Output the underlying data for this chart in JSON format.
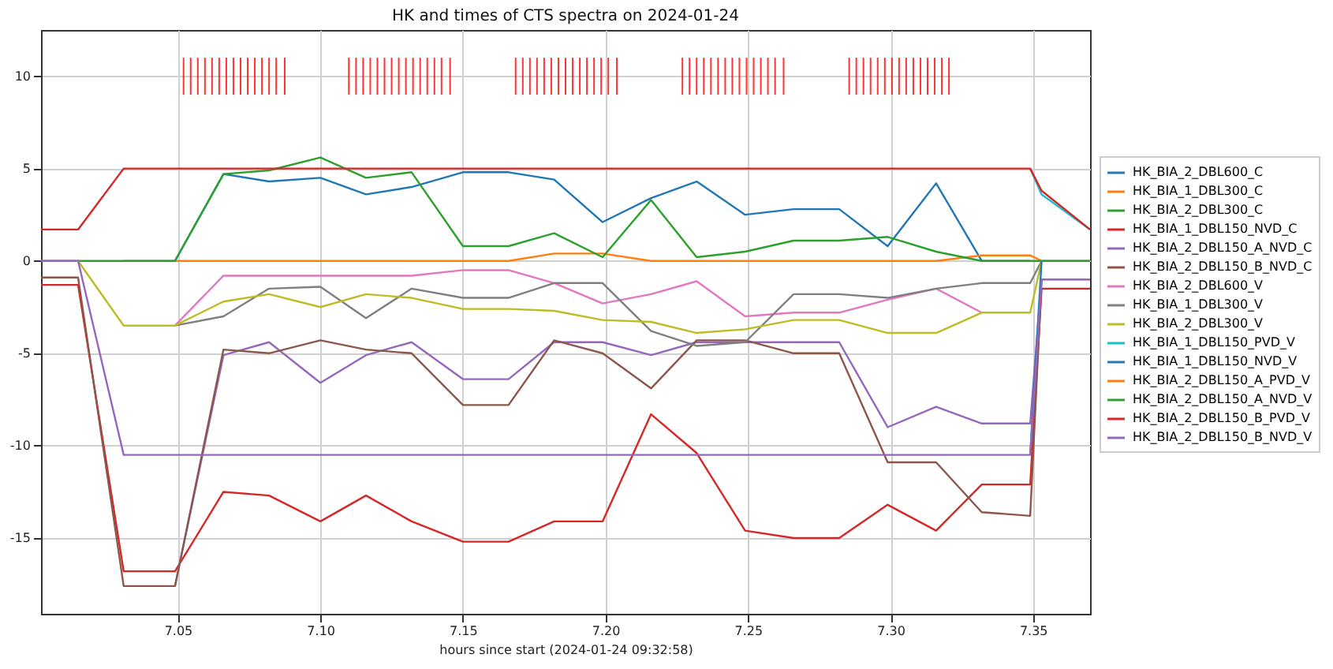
{
  "chart_data": {
    "type": "line",
    "title": "HK and times of CTS spectra on 2024-01-24",
    "xlabel": "hours since start (2024-01-24 09:32:58)",
    "x": [
      7.002,
      7.015,
      7.031,
      7.049,
      7.066,
      7.082,
      7.1,
      7.116,
      7.132,
      7.15,
      7.166,
      7.182,
      7.199,
      7.216,
      7.232,
      7.249,
      7.266,
      7.282,
      7.299,
      7.316,
      7.332,
      7.349,
      7.353,
      7.37
    ],
    "xlim": [
      7.002,
      7.37
    ],
    "xticks": [
      {
        "value": 7.05,
        "label": "7.05"
      },
      {
        "value": 7.1,
        "label": "7.10"
      },
      {
        "value": 7.15,
        "label": "7.15"
      },
      {
        "value": 7.2,
        "label": "7.20"
      },
      {
        "value": 7.25,
        "label": "7.25"
      },
      {
        "value": 7.3,
        "label": "7.30"
      },
      {
        "value": 7.35,
        "label": "7.35"
      }
    ],
    "ylim": [
      -19.1,
      12.5
    ],
    "yticks": [
      -15,
      -10,
      -5,
      0,
      5,
      10
    ],
    "grid": true,
    "legend": "right",
    "line_style": "solid",
    "series": [
      {
        "name": "HK_BIA_2_DBL600_C",
        "color": "#1f77b4",
        "values": [
          null,
          null,
          null,
          0,
          4.7,
          4.3,
          4.5,
          3.6,
          4.0,
          4.8,
          4.8,
          4.4,
          2.1,
          3.4,
          4.3,
          2.5,
          2.8,
          2.8,
          0.8,
          4.2,
          0,
          0,
          null,
          null
        ]
      },
      {
        "name": "HK_BIA_1_DBL300_C",
        "color": "#ff7f0e",
        "values": [
          null,
          null,
          0,
          0,
          0,
          0,
          0,
          0,
          0,
          0,
          0,
          0.4,
          0.4,
          0,
          0,
          0,
          0,
          0,
          0,
          0,
          0.3,
          0.3,
          0,
          0
        ]
      },
      {
        "name": "HK_BIA_2_DBL300_C",
        "color": "#2ca02c",
        "values": [
          0,
          0,
          0,
          0,
          4.7,
          4.9,
          5.6,
          4.5,
          4.8,
          0.8,
          0.8,
          1.5,
          0.2,
          3.3,
          0.2,
          0.5,
          1.1,
          1.1,
          1.3,
          0.5,
          0,
          0,
          0,
          0
        ]
      },
      {
        "name": "HK_BIA_1_DBL150_NVD_C",
        "color": "#d62728",
        "values": [
          -1.3,
          -1.3,
          -16.8,
          -16.8,
          -12.5,
          -12.7,
          -14.1,
          -12.7,
          -14.1,
          -15.2,
          -15.2,
          -14.1,
          -14.1,
          -8.3,
          -10.4,
          -14.6,
          -15,
          -15,
          -13.2,
          -14.6,
          -12.1,
          -12.1,
          -1.5,
          -1.5
        ]
      },
      {
        "name": "HK_BIA_2_DBL150_A_NVD_C",
        "color": "#9467bd",
        "values": [
          null,
          null,
          null,
          -17.6,
          -5.1,
          -4.4,
          -6.6,
          -5.1,
          -4.4,
          -6.4,
          -6.4,
          -4.4,
          -4.4,
          -5.1,
          -4.4,
          -4.4,
          -4.4,
          -4.4,
          -9,
          -7.9,
          -8.8,
          -8.8,
          -1.0,
          -1.0
        ]
      },
      {
        "name": "HK_BIA_2_DBL150_B_NVD_C",
        "color": "#8c564b",
        "values": [
          -0.9,
          -0.9,
          -17.6,
          -17.6,
          -4.8,
          -5,
          -4.3,
          -4.8,
          -5,
          -7.8,
          -7.8,
          -4.3,
          -5,
          -6.9,
          -4.3,
          -4.3,
          -5,
          -5,
          -10.9,
          -10.9,
          -13.6,
          -13.8,
          -1.0,
          -1.0
        ]
      },
      {
        "name": "HK_BIA_2_DBL600_V",
        "color": "#e377c2",
        "values": [
          null,
          null,
          null,
          -3.5,
          -0.8,
          -0.8,
          -0.8,
          -0.8,
          -0.8,
          -0.5,
          -0.5,
          -1.2,
          -2.3,
          -1.8,
          -1.1,
          -3,
          -2.8,
          -2.8,
          -2.1,
          -1.5,
          -2.8,
          null,
          null,
          null
        ]
      },
      {
        "name": "HK_BIA_1_DBL300_V",
        "color": "#7f7f7f",
        "values": [
          null,
          null,
          null,
          -3.5,
          -3,
          -1.5,
          -1.4,
          -3.1,
          -1.5,
          -2,
          -2,
          -1.2,
          -1.2,
          -3.8,
          -4.6,
          -4.4,
          -1.8,
          -1.8,
          -2,
          -1.5,
          -1.2,
          -1.2,
          0,
          null
        ]
      },
      {
        "name": "HK_BIA_2_DBL300_V",
        "color": "#bcbd22",
        "values": [
          null,
          0,
          -3.5,
          -3.5,
          -2.2,
          -1.8,
          -2.5,
          -1.8,
          -2,
          -2.6,
          -2.6,
          -2.7,
          -3.2,
          -3.3,
          -3.9,
          -3.7,
          -3.2,
          -3.2,
          -3.9,
          -3.9,
          -2.8,
          -2.8,
          0,
          null
        ]
      },
      {
        "name": "HK_BIA_1_DBL150_PVD_V",
        "color": "#17becf",
        "values": [
          null,
          null,
          null,
          null,
          null,
          null,
          null,
          null,
          null,
          null,
          null,
          null,
          null,
          null,
          null,
          null,
          null,
          null,
          null,
          null,
          null,
          5,
          3.6,
          1.7
        ]
      },
      {
        "name": "HK_BIA_1_DBL150_NVD_V",
        "color": "#1f77b4",
        "values": [
          null,
          null,
          null,
          null,
          null,
          null,
          null,
          null,
          null,
          null,
          null,
          null,
          null,
          null,
          null,
          null,
          null,
          null,
          null,
          null,
          null,
          -10.5,
          0,
          null
        ]
      },
      {
        "name": "HK_BIA_2_DBL150_A_PVD_V",
        "color": "#ff7f0e",
        "values": [
          null,
          null,
          null,
          null,
          null,
          null,
          null,
          null,
          null,
          null,
          null,
          null,
          null,
          null,
          null,
          null,
          null,
          null,
          null,
          null,
          null,
          null,
          null,
          null
        ]
      },
      {
        "name": "HK_BIA_2_DBL150_A_NVD_V",
        "color": "#2ca02c",
        "values": [
          null,
          null,
          null,
          null,
          null,
          null,
          null,
          null,
          null,
          null,
          null,
          null,
          null,
          null,
          null,
          null,
          null,
          null,
          null,
          null,
          null,
          null,
          null,
          null
        ]
      },
      {
        "name": "HK_BIA_2_DBL150_B_PVD_V",
        "color": "#d62728",
        "values": [
          1.7,
          1.7,
          5,
          5,
          5,
          5,
          5,
          5,
          5,
          5,
          5,
          5,
          5,
          5,
          5,
          5,
          5,
          5,
          5,
          5,
          5,
          5,
          3.8,
          1.7
        ]
      },
      {
        "name": "HK_BIA_2_DBL150_B_NVD_V",
        "color": "#9467bd",
        "values": [
          0,
          0,
          -10.5,
          -10.5,
          -10.5,
          -10.5,
          -10.5,
          -10.5,
          -10.5,
          -10.5,
          -10.5,
          -10.5,
          -10.5,
          -10.5,
          -10.5,
          -10.5,
          -10.5,
          -10.5,
          -10.5,
          -10.5,
          -10.5,
          -10.5,
          -1.0,
          -1.0
        ]
      },
      {
        "type": "bar",
        "color": "#ff0000",
        "x": [
          7.052,
          7.0545,
          7.057,
          7.0595,
          7.062,
          7.0645,
          7.067,
          7.0695,
          7.072,
          7.0745,
          7.077,
          7.0795,
          7.082,
          7.0845,
          7.0875,
          7.11,
          7.1125,
          7.115,
          7.1175,
          7.12,
          7.1225,
          7.125,
          7.1275,
          7.13,
          7.1325,
          7.135,
          7.1375,
          7.14,
          7.1425,
          7.1455,
          7.1685,
          7.171,
          7.1735,
          7.176,
          7.1785,
          7.181,
          7.1835,
          7.186,
          7.1885,
          7.191,
          7.1935,
          7.196,
          7.1985,
          7.201,
          7.204,
          7.227,
          7.2295,
          7.232,
          7.2345,
          7.237,
          7.2395,
          7.242,
          7.2445,
          7.247,
          7.2495,
          7.252,
          7.2545,
          7.257,
          7.2595,
          7.2625,
          7.2855,
          7.288,
          7.2905,
          7.293,
          7.2955,
          7.298,
          7.3005,
          7.303,
          7.3055,
          7.308,
          7.3105,
          7.313,
          7.3155,
          7.318,
          7.3205
        ],
        "base": [
          9,
          9,
          9,
          9,
          9,
          9,
          9,
          9,
          9,
          9,
          9,
          9,
          9,
          9,
          9,
          9,
          9,
          9,
          9,
          9,
          9,
          9,
          9,
          9,
          9,
          9,
          9,
          9,
          9,
          9,
          9,
          9,
          9,
          9,
          9,
          9,
          9,
          9,
          9,
          9,
          9,
          9,
          9,
          9,
          9,
          9,
          9,
          9,
          9,
          9,
          9,
          9,
          9,
          9,
          9,
          9,
          9,
          9,
          9,
          9,
          9,
          9,
          9,
          9,
          9,
          9,
          9,
          9,
          9,
          9,
          9,
          9,
          9,
          9,
          9
        ],
        "values": [
          2,
          2,
          2,
          2,
          2,
          2,
          2,
          2,
          2,
          2,
          2,
          2,
          2,
          2,
          2,
          2,
          2,
          2,
          2,
          2,
          2,
          2,
          2,
          2,
          2,
          2,
          2,
          2,
          2,
          2,
          2,
          2,
          2,
          2,
          2,
          2,
          2,
          2,
          2,
          2,
          2,
          2,
          2,
          2,
          2,
          2,
          2,
          2,
          2,
          2,
          2,
          2,
          2,
          2,
          2,
          2,
          2,
          2,
          2,
          2,
          2,
          2,
          2,
          2,
          2,
          2,
          2,
          2,
          2,
          2,
          2,
          2,
          2,
          2,
          2
        ]
      }
    ]
  }
}
